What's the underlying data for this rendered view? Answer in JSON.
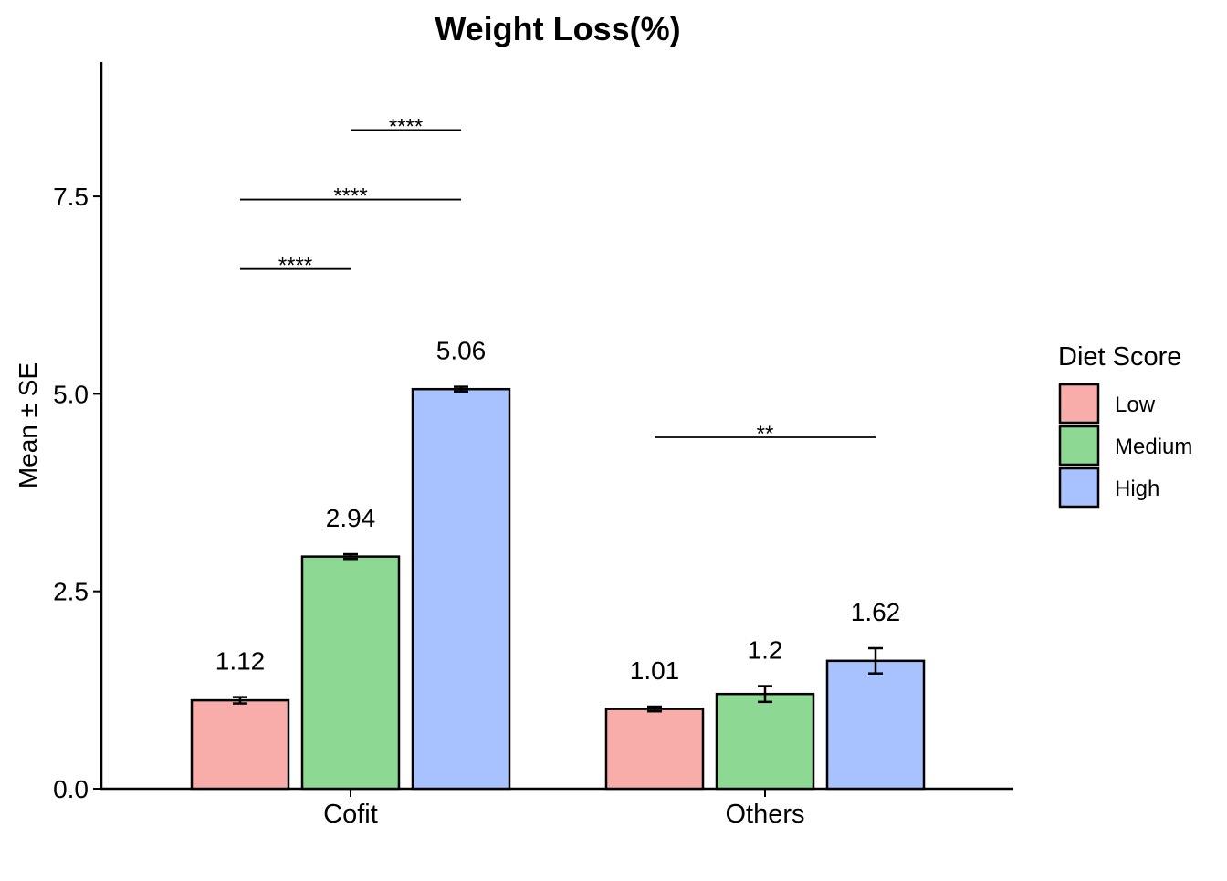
{
  "chart_data": {
    "type": "bar",
    "title": "Weight Loss(%)",
    "xlabel": "",
    "ylabel": "Mean ± SE",
    "ylim": [
      0,
      9.2
    ],
    "yticks": [
      0.0,
      2.5,
      5.0,
      7.5
    ],
    "ytick_labels": [
      "0.0",
      "2.5",
      "5.0",
      "7.5"
    ],
    "categories": [
      "Cofit",
      "Others"
    ],
    "grid": false,
    "legend": {
      "title": "Diet Score",
      "position": "right",
      "entries": [
        "Low",
        "Medium",
        "High"
      ]
    },
    "series": [
      {
        "name": "Low",
        "color": "#F8ADAB",
        "values": [
          1.12,
          1.01
        ],
        "se": [
          0.04,
          0.03
        ],
        "labels": [
          "1.12",
          "1.01"
        ]
      },
      {
        "name": "Medium",
        "color": "#8DD892",
        "values": [
          2.94,
          1.2
        ],
        "se": [
          0.03,
          0.1
        ],
        "labels": [
          "2.94",
          "1.2"
        ]
      },
      {
        "name": "High",
        "color": "#A8C1FF",
        "values": [
          5.06,
          1.62
        ],
        "se": [
          0.03,
          0.16
        ],
        "labels": [
          "5.06",
          "1.62"
        ]
      }
    ],
    "significance": [
      {
        "category": "Cofit",
        "from": "Low",
        "to": "Medium",
        "y": 6.58,
        "label": "****"
      },
      {
        "category": "Cofit",
        "from": "Low",
        "to": "High",
        "y": 7.46,
        "label": "****"
      },
      {
        "category": "Cofit",
        "from": "Medium",
        "to": "High",
        "y": 8.34,
        "label": "****"
      },
      {
        "category": "Others",
        "from": "Low",
        "to": "High",
        "y": 4.45,
        "label": "**"
      }
    ]
  }
}
